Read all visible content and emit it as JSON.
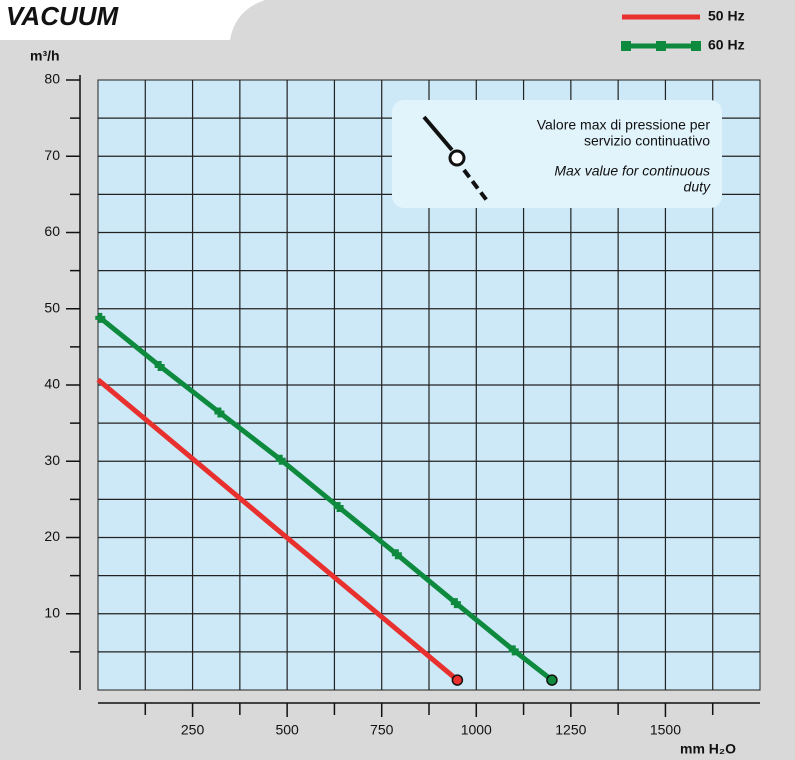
{
  "chart_data": {
    "type": "line",
    "title": "VACUUM",
    "y_label": "m³/h",
    "x_label": "mm H₂O",
    "annotation": {
      "lines_it": [
        "Valore max di pressione per",
        "servizio continuativo"
      ],
      "lines_en": [
        "Max value for continuous",
        "duty"
      ]
    },
    "xlim": [
      0,
      1750
    ],
    "ylim": [
      0,
      80
    ],
    "xticks": [
      250,
      500,
      750,
      1000,
      1250,
      1500
    ],
    "yticks": [
      10,
      20,
      30,
      40,
      50,
      60,
      70,
      80
    ],
    "x_minor_ticks": [
      125,
      375,
      625,
      875,
      1125,
      1375,
      1625
    ],
    "y_minor_ticks": [
      5,
      15,
      25,
      35,
      45,
      55,
      65,
      75
    ],
    "grid": true,
    "legend": "top-right",
    "series": [
      {
        "name": "50 Hz",
        "color": "#e8312f",
        "marker": false,
        "x": [
          0,
          950
        ],
        "values": [
          40.7,
          1.3
        ]
      },
      {
        "name": "60 Hz",
        "color": "#0e8a3e",
        "marker": true,
        "x": [
          6,
          163,
          321,
          483,
          636,
          790,
          946,
          1099,
          1200
        ],
        "values": [
          48.8,
          42.5,
          36.4,
          30.2,
          24.0,
          17.8,
          11.4,
          5.2,
          1.3
        ]
      }
    ]
  }
}
